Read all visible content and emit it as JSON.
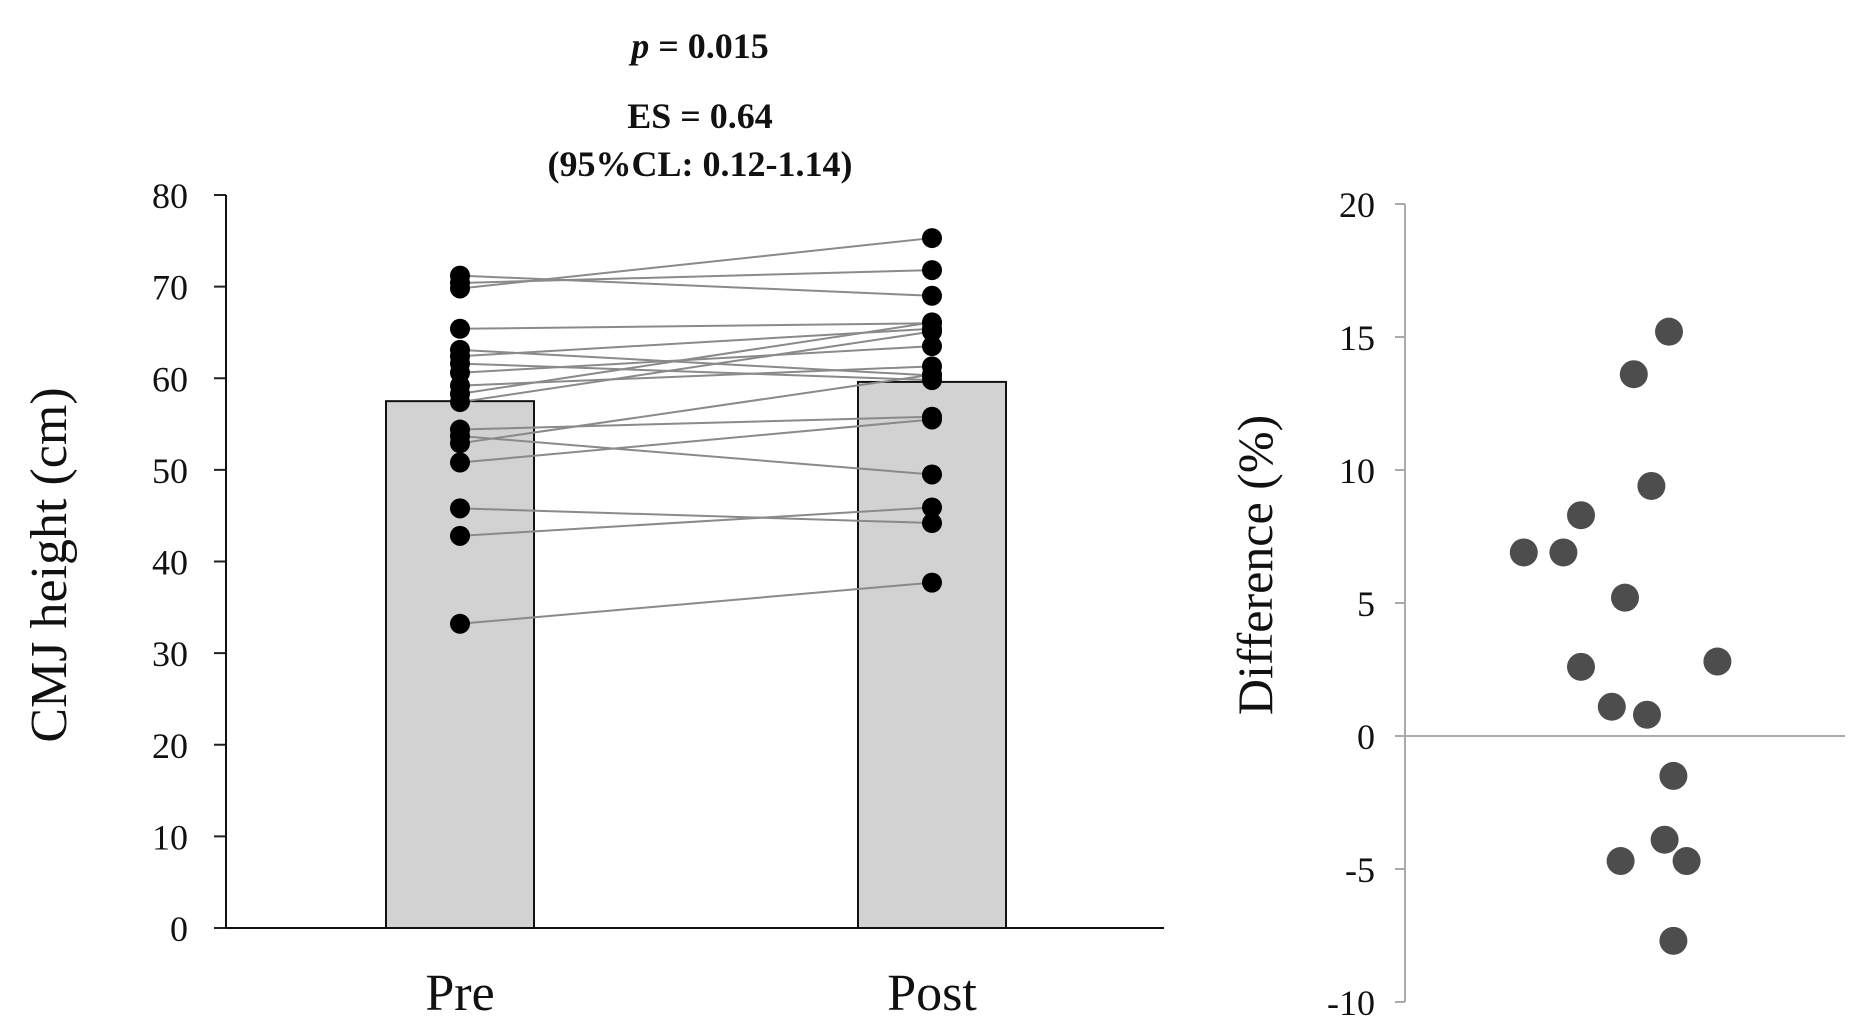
{
  "chart_data": [
    {
      "type": "bar",
      "categories": [
        "Pre",
        "Post"
      ],
      "values": [
        57.5,
        59.6
      ],
      "ylabel": "CMJ height (cm)",
      "xlabel": "",
      "ylim": [
        0,
        80
      ],
      "yticks": [
        0,
        10,
        20,
        30,
        40,
        50,
        60,
        70,
        80
      ],
      "annotations": {
        "p_label": "p",
        "p_rest": " = 0.015",
        "es": "ES = 0.64",
        "cl": "(95%CL: 0.12-1.14)"
      },
      "paired_points": [
        {
          "pre": 71.2,
          "post": 69.0
        },
        {
          "pre": 70.4,
          "post": 71.8
        },
        {
          "pre": 69.8,
          "post": 75.3
        },
        {
          "pre": 65.4,
          "post": 66.0
        },
        {
          "pre": 63.1,
          "post": 60.3
        },
        {
          "pre": 62.4,
          "post": 65.4
        },
        {
          "pre": 61.6,
          "post": 59.8
        },
        {
          "pre": 60.6,
          "post": 63.5
        },
        {
          "pre": 59.2,
          "post": 61.3
        },
        {
          "pre": 58.3,
          "post": 66.1
        },
        {
          "pre": 57.4,
          "post": 65.1
        },
        {
          "pre": 54.4,
          "post": 55.8
        },
        {
          "pre": 53.7,
          "post": 49.5
        },
        {
          "pre": 52.9,
          "post": 60.4
        },
        {
          "pre": 50.8,
          "post": 55.5
        },
        {
          "pre": 45.8,
          "post": 44.2
        },
        {
          "pre": 42.8,
          "post": 45.9
        },
        {
          "pre": 33.2,
          "post": 37.7
        }
      ]
    },
    {
      "type": "scatter",
      "ylabel": "Difference  (%)",
      "ylim": [
        -10,
        20
      ],
      "yticks": [
        -10,
        -5,
        0,
        5,
        10,
        15,
        20
      ],
      "x": [
        0.6,
        0.52,
        0.56,
        0.4,
        0.27,
        0.36,
        0.5,
        0.4,
        0.71,
        0.47,
        0.55,
        0.61,
        0.59,
        0.64,
        0.49,
        0.61
      ],
      "values": [
        15.2,
        13.6,
        9.4,
        8.3,
        6.9,
        6.9,
        5.2,
        2.6,
        2.8,
        1.1,
        0.8,
        -1.5,
        -3.9,
        -4.7,
        -4.7,
        -7.7
      ]
    }
  ]
}
